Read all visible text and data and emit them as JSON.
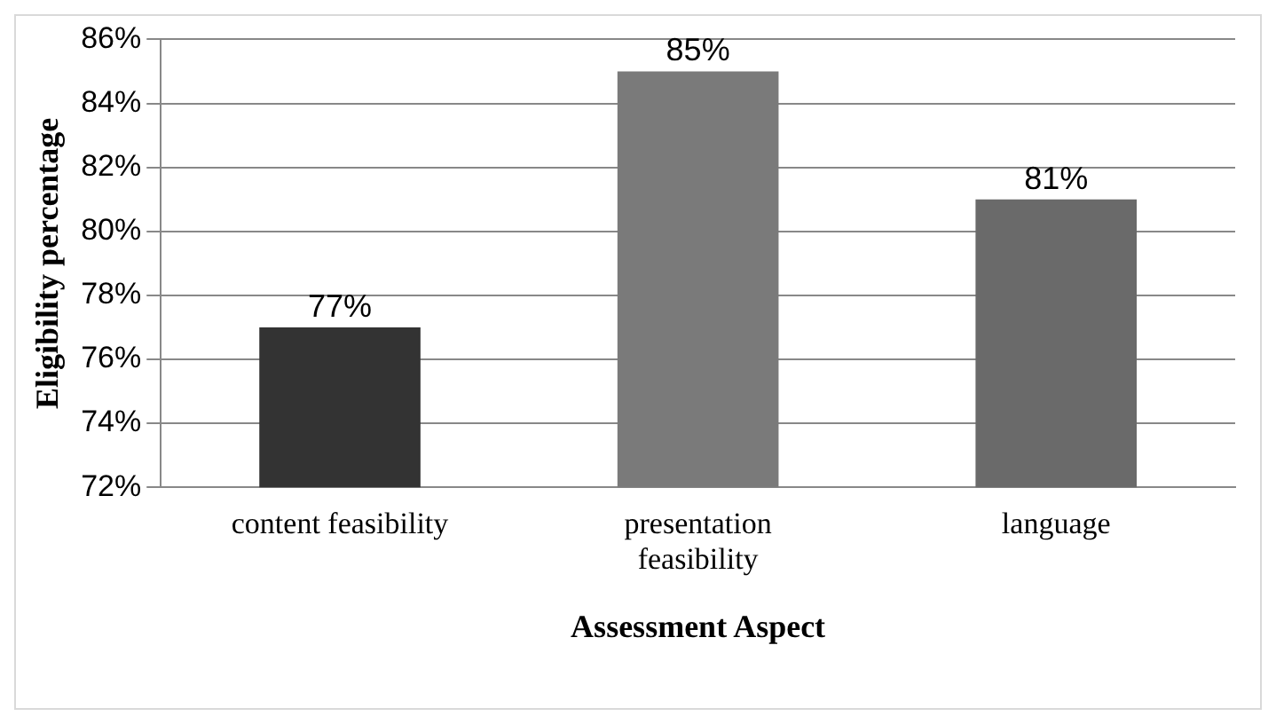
{
  "chart_data": {
    "type": "bar",
    "ylabel": "Eligibility percentage",
    "xlabel": "Assessment Aspect",
    "categories": [
      "content feasibility",
      "presentation feasibility",
      "language"
    ],
    "values": [
      77,
      85,
      81
    ],
    "colors": [
      "#333333",
      "#7a7a7a",
      "#6a6a6a"
    ],
    "ylim": [
      72,
      86
    ],
    "yticks": [
      {
        "value": 72,
        "label": "72%"
      },
      {
        "value": 74,
        "label": "74%"
      },
      {
        "value": 76,
        "label": "76%"
      },
      {
        "value": 78,
        "label": "78%"
      },
      {
        "value": 80,
        "label": "80%"
      },
      {
        "value": 82,
        "label": "82%"
      },
      {
        "value": 84,
        "label": "84%"
      },
      {
        "value": 86,
        "label": "86%"
      }
    ],
    "value_labels": [
      "77%",
      "85%",
      "81%"
    ],
    "grid": "y",
    "legend": false
  }
}
